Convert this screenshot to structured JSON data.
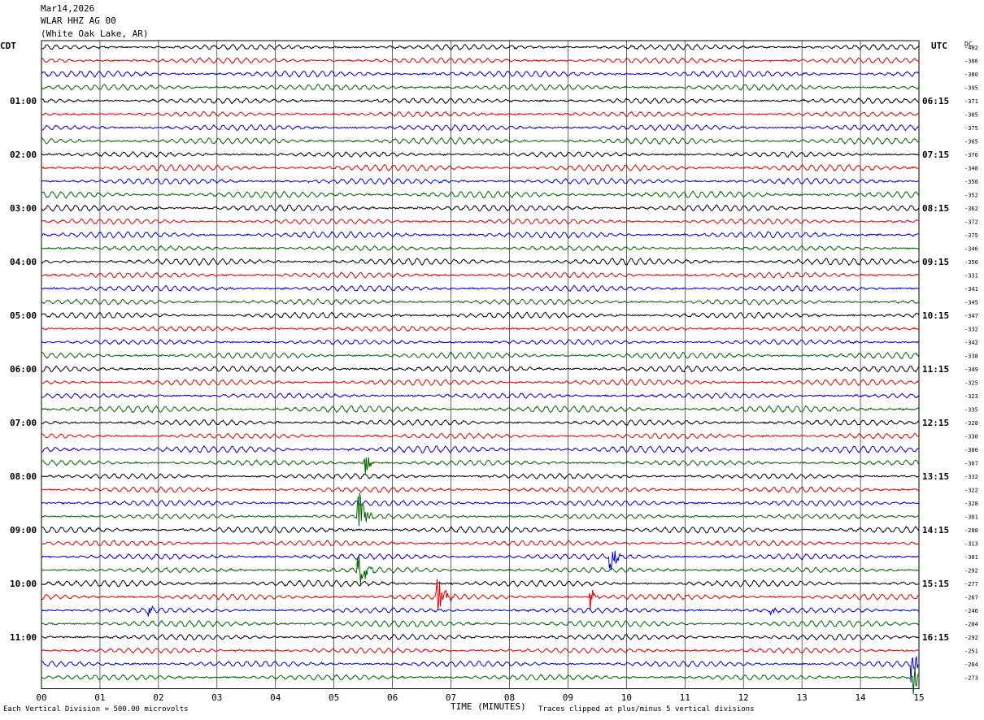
{
  "header": {
    "date": "Mar14,2026",
    "station": "WLAR HHZ AG 00",
    "location": "(White Oak Lake, AR)"
  },
  "axis": {
    "left_tz": "CDT",
    "right_tz": "UTC",
    "dc_label": "DC",
    "xlabel": "TIME (MINUTES)"
  },
  "footer": {
    "scale_note": "Each Vertical Division =  500.00 microvolts",
    "clip_note": "Traces clipped at plus/minus 5 vertical divisions"
  },
  "colors": {
    "trace_cycle": [
      "#000000",
      "#e00000",
      "#0000d0",
      "#006400"
    ],
    "grid": "#000000"
  },
  "chart_data": {
    "type": "line",
    "subtype": "helicorder",
    "x": {
      "unit": "minutes",
      "range": [
        0,
        15
      ],
      "ticks": [
        "00",
        "01",
        "02",
        "03",
        "04",
        "05",
        "06",
        "07",
        "08",
        "09",
        "10",
        "11",
        "12",
        "13",
        "14",
        "15"
      ]
    },
    "rows_per_hour": 4,
    "row_minutes": 15,
    "left_hour_labels": [
      "01:00",
      "02:00",
      "03:00",
      "04:00",
      "05:00",
      "06:00",
      "07:00",
      "08:00",
      "09:00",
      "10:00",
      "11:00"
    ],
    "right_hour_labels": [
      "06:15",
      "07:15",
      "08:15",
      "09:15",
      "10:15",
      "11:15",
      "12:15",
      "13:15",
      "14:15",
      "15:15",
      "16:15"
    ],
    "dc_offsets": [
      -402,
      -386,
      -380,
      -395,
      -371,
      -385,
      -375,
      -365,
      -376,
      -348,
      -350,
      -352,
      -362,
      -372,
      -375,
      -346,
      -350,
      -331,
      -341,
      -345,
      -347,
      -332,
      -342,
      -338,
      -349,
      -325,
      -323,
      -335,
      -328,
      -330,
      -300,
      -307,
      -332,
      -322,
      -328,
      -301,
      -288,
      -313,
      -301,
      -292,
      -277,
      -267,
      -246,
      -284,
      -292,
      -251,
      -284,
      -273
    ],
    "events": [
      {
        "row": 31,
        "minute": 5.55,
        "amp": 14,
        "dur": 0.4
      },
      {
        "row": 35,
        "minute": 5.45,
        "amp": 28,
        "dur": 0.5
      },
      {
        "row": 38,
        "minute": 9.75,
        "amp": 26,
        "dur": 0.35
      },
      {
        "row": 39,
        "minute": 5.45,
        "amp": 22,
        "dur": 0.5
      },
      {
        "row": 41,
        "minute": 6.8,
        "amp": 22,
        "dur": 0.5
      },
      {
        "row": 41,
        "minute": 9.4,
        "amp": 16,
        "dur": 0.25
      },
      {
        "row": 42,
        "minute": 1.85,
        "amp": 9,
        "dur": 0.2
      },
      {
        "row": 42,
        "minute": 12.5,
        "amp": 9,
        "dur": 0.2
      },
      {
        "row": 46,
        "minute": 14.9,
        "amp": 28,
        "dur": 0.3
      },
      {
        "row": 47,
        "minute": 14.95,
        "amp": 22,
        "dur": 0.15
      }
    ]
  }
}
